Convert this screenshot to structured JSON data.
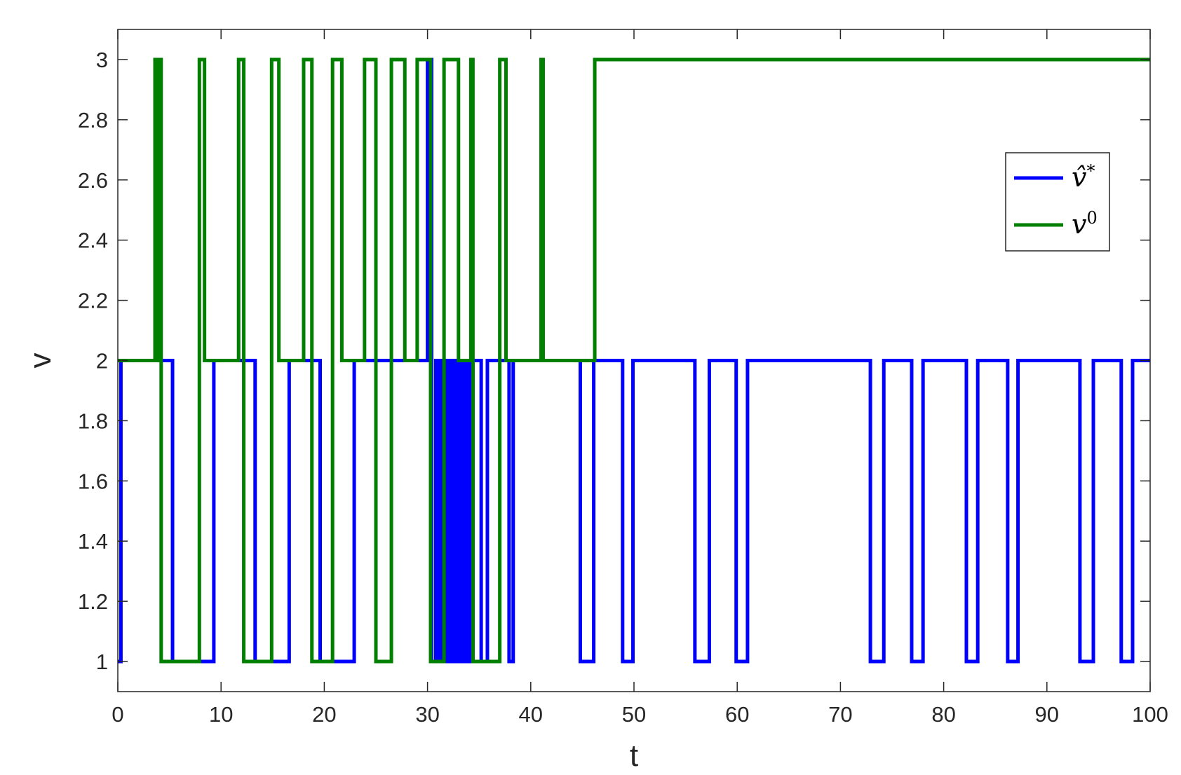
{
  "chart_data": {
    "type": "line",
    "step": true,
    "xlabel": "t",
    "ylabel": "v",
    "xlim": [
      0,
      100
    ],
    "ylim": [
      0.9,
      3.1
    ],
    "xticks": [
      0,
      10,
      20,
      30,
      40,
      50,
      60,
      70,
      80,
      90,
      100
    ],
    "yticks": [
      1,
      1.2,
      1.4,
      1.6,
      1.8,
      2,
      2.2,
      2.4,
      2.6,
      2.8,
      3
    ],
    "ytick_labels": [
      "1",
      "1.2",
      "1.4",
      "1.6",
      "1.8",
      "2",
      "2.2",
      "2.4",
      "2.6",
      "2.8",
      "3"
    ],
    "grid": false,
    "box": true,
    "legend_position": "upper-right",
    "series": [
      {
        "name": "v̂*",
        "legend_base": "v̂",
        "legend_sup": "*",
        "color": "#0000ff",
        "x": [
          0,
          0.3,
          5.3,
          9.3,
          13.3,
          16.6,
          19.6,
          22.9,
          30.0,
          30.4,
          30.8,
          31.1,
          31.4,
          31.7,
          32.0,
          32.3,
          32.6,
          32.9,
          33.2,
          33.5,
          33.8,
          34.1,
          34.4,
          35.2,
          35.8,
          37.9,
          38.3,
          44.8,
          46.1,
          48.9,
          49.9,
          55.9,
          57.3,
          59.9,
          61.0,
          72.9,
          74.2,
          76.9,
          78.0,
          82.2,
          83.3,
          86.2,
          87.2,
          93.2,
          94.5,
          97.2,
          98.3,
          100
        ],
        "y": [
          1,
          2,
          1,
          2,
          1,
          2,
          1,
          2,
          3,
          1,
          2,
          1,
          2,
          1,
          2,
          1,
          2,
          1,
          2,
          1,
          2,
          1,
          2,
          1,
          2,
          1,
          2,
          1,
          2,
          1,
          2,
          1,
          2,
          1,
          2,
          1,
          2,
          1,
          2,
          1,
          2,
          1,
          2,
          1,
          2,
          1,
          2,
          2
        ]
      },
      {
        "name": "v⁰",
        "legend_base": "v",
        "legend_sup": "0",
        "color": "#007f00",
        "x": [
          0,
          3.6,
          3.8,
          4.0,
          4.2,
          7.9,
          8.4,
          11.7,
          12.2,
          14.9,
          15.6,
          18.0,
          18.8,
          20.8,
          21.7,
          23.9,
          25.0,
          26.5,
          27.8,
          29.0,
          30.3,
          31.6,
          33.0,
          34.2,
          34.4,
          37.0,
          37.6,
          40.6,
          41.0,
          41.2,
          46.2,
          46.5,
          100
        ],
        "y": [
          2,
          3,
          2,
          3,
          1,
          3,
          2,
          3,
          1,
          3,
          2,
          3,
          1,
          3,
          2,
          3,
          1,
          3,
          2,
          3,
          1,
          3,
          2,
          3,
          1,
          3,
          2,
          2,
          3,
          2,
          3,
          3,
          3
        ]
      }
    ]
  }
}
